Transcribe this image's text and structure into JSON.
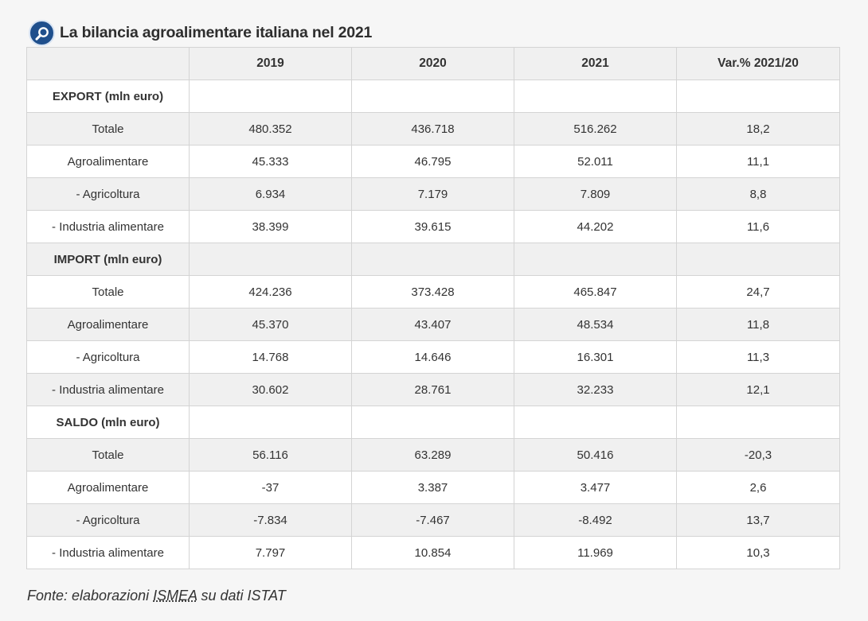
{
  "header": {
    "title": "La bilancia agroalimentare italiana nel 2021",
    "logo_icon": "magnifier-icon"
  },
  "table": {
    "columns": [
      "",
      "2019",
      "2020",
      "2021",
      "Var.% 2021/20"
    ],
    "rows": [
      {
        "type": "section",
        "label": "EXPORT (mln euro)",
        "values": [
          "",
          "",
          "",
          ""
        ]
      },
      {
        "type": "data",
        "label": "Totale",
        "values": [
          "480.352",
          "436.718",
          "516.262",
          "18,2"
        ]
      },
      {
        "type": "data",
        "label": "Agroalimentare",
        "values": [
          "45.333",
          "46.795",
          "52.011",
          "11,1"
        ]
      },
      {
        "type": "data",
        "label": "- Agricoltura",
        "values": [
          "6.934",
          "7.179",
          "7.809",
          "8,8"
        ]
      },
      {
        "type": "data",
        "label": "- Industria alimentare",
        "values": [
          "38.399",
          "39.615",
          "44.202",
          "11,6"
        ]
      },
      {
        "type": "section",
        "label": "IMPORT (mln euro)",
        "values": [
          "",
          "",
          "",
          ""
        ]
      },
      {
        "type": "data",
        "label": "Totale",
        "values": [
          "424.236",
          "373.428",
          "465.847",
          "24,7"
        ]
      },
      {
        "type": "data",
        "label": "Agroalimentare",
        "values": [
          "45.370",
          "43.407",
          "48.534",
          "11,8"
        ]
      },
      {
        "type": "data",
        "label": "- Agricoltura",
        "values": [
          "14.768",
          "14.646",
          "16.301",
          "11,3"
        ]
      },
      {
        "type": "data",
        "label": "- Industria alimentare",
        "values": [
          "30.602",
          "28.761",
          "32.233",
          "12,1"
        ]
      },
      {
        "type": "section",
        "label": "SALDO (mln euro)",
        "values": [
          "",
          "",
          "",
          ""
        ]
      },
      {
        "type": "data",
        "label": "Totale",
        "values": [
          "56.116",
          "63.289",
          "50.416",
          "-20,3"
        ]
      },
      {
        "type": "data",
        "label": "Agroalimentare",
        "values": [
          "-37",
          "3.387",
          "3.477",
          "2,6"
        ]
      },
      {
        "type": "data",
        "label": "- Agricoltura",
        "values": [
          "-7.834",
          "-7.467",
          "-8.492",
          "13,7"
        ]
      },
      {
        "type": "data",
        "label": "- Industria alimentare",
        "values": [
          "7.797",
          "10.854",
          "11.969",
          "10,3"
        ]
      }
    ]
  },
  "source": {
    "prefix": "Fonte: elaborazioni ",
    "link": "ISMEA",
    "suffix": " su dati ISTAT"
  },
  "colors": {
    "shade_row": "#f0f0f0",
    "plain_row": "#ffffff",
    "border": "#d4d4d4",
    "logo_blue": "#1f4f8c"
  }
}
